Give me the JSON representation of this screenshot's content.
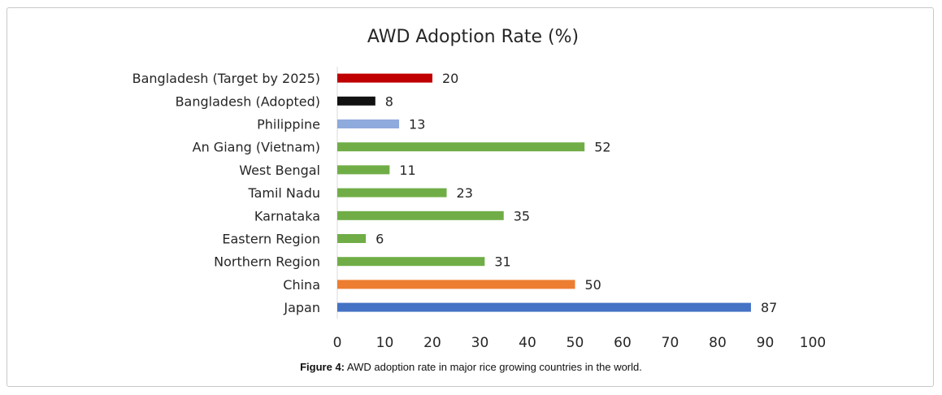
{
  "chart_data": {
    "type": "bar",
    "orientation": "horizontal",
    "title": "AWD Adoption Rate (%)",
    "xlabel": "",
    "ylabel": "",
    "xlim": [
      0,
      100
    ],
    "ticks": [
      "0",
      "10",
      "20",
      "30",
      "40",
      "50",
      "60",
      "70",
      "80",
      "90",
      "100"
    ],
    "grid": false,
    "categories": [
      "Bangladesh (Target by 2025)",
      "Bangladesh (Adopted)",
      "Philippine",
      "An Giang (Vietnam)",
      "West Bengal",
      "Tamil Nadu",
      "Karnataka",
      "Eastern Region",
      "Northern Region",
      "China",
      "Japan"
    ],
    "values": [
      20,
      8,
      13,
      52,
      11,
      23,
      35,
      6,
      31,
      50,
      87
    ],
    "colors": [
      "#c00000",
      "#111111",
      "#8faadc",
      "#70ad47",
      "#70ad47",
      "#70ad47",
      "#70ad47",
      "#70ad47",
      "#70ad47",
      "#ed7d31",
      "#4472c4"
    ]
  },
  "caption": {
    "label": "Figure 4:",
    "text": " AWD adoption rate in major rice growing countries in the world."
  }
}
